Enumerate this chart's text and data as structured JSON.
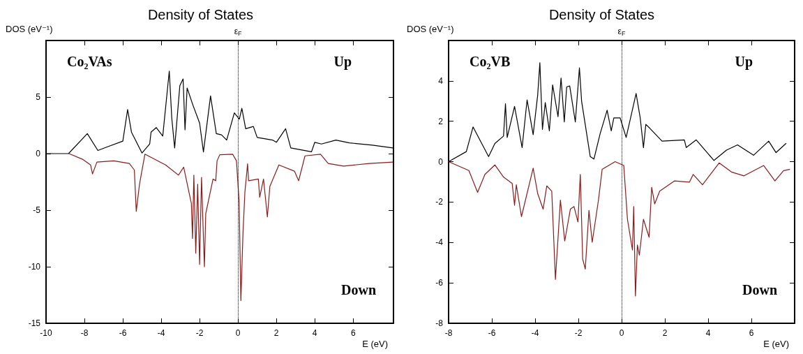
{
  "chart_data": [
    {
      "type": "line",
      "title": "Density of States",
      "xlabel": "E (eV)",
      "ylabel": "DOS (eV⁻¹)",
      "annotations": [
        "Co₂VAs",
        "Up",
        "Down"
      ],
      "xlim": [
        -10,
        8.1
      ],
      "xticks": [
        -10,
        -8,
        -6,
        -4,
        -2,
        0,
        2,
        4,
        6
      ],
      "ylim": [
        -15,
        10
      ],
      "yticks": [
        -15,
        -10,
        -5,
        0,
        5
      ],
      "grid": false,
      "marker": "none",
      "line_style": "solid",
      "ref_lines": [
        {
          "axis": "x",
          "value": 0,
          "label": "ε$_{F}$",
          "color": "#000000",
          "line_style": "dotted"
        }
      ],
      "series": [
        {
          "color": "#000000",
          "x": [
            -10,
            -8.83,
            -7.85,
            -7.3,
            -6.8,
            -6.0,
            -5.75,
            -5.55,
            -5.0,
            -4.6,
            -4.53,
            -4.26,
            -3.92,
            -3.58,
            -3.45,
            -3.3,
            -3.03,
            -2.86,
            -2.76,
            -2.65,
            -2.35,
            -2.0,
            -1.8,
            -1.43,
            -1.13,
            -0.86,
            -0.59,
            -0.19,
            0.07,
            0.2,
            0.4,
            0.8,
            1.0,
            1.8,
            2.0,
            2.48,
            2.75,
            3.83,
            4.0,
            4.35,
            5.1,
            5.8,
            7.0,
            8.07
          ],
          "values": [
            0,
            0,
            1.77,
            0.28,
            0.6,
            1.1,
            3.9,
            1.9,
            0.05,
            0.85,
            1.9,
            2.3,
            1.55,
            7.3,
            3.15,
            0.5,
            6.0,
            6.6,
            2.1,
            5.8,
            4.3,
            2.7,
            0.15,
            5.1,
            1.77,
            1.66,
            1.2,
            3.6,
            3.05,
            4.0,
            2.2,
            2.4,
            1.43,
            1.2,
            1.0,
            2.2,
            0.5,
            0.16,
            1.0,
            0.85,
            1.2,
            0.95,
            0.75,
            0.5
          ]
        },
        {
          "color": "#8b1a1a",
          "x": [
            -8.8,
            -8.1,
            -7.68,
            -7.58,
            -7.35,
            -6.47,
            -5.66,
            -5.4,
            -5.3,
            -5.13,
            -4.85,
            -3.77,
            -3.1,
            -2.83,
            -2.43,
            -2.37,
            -2.3,
            -2.2,
            -2.1,
            -2.0,
            -1.9,
            -1.8,
            -1.75,
            -1.68,
            -1.5,
            -1.3,
            -1.16,
            -1.09,
            -0.95,
            -0.28,
            -0.08,
            0.06,
            0.15,
            0.26,
            0.36,
            0.5,
            0.55,
            1.06,
            1.13,
            1.33,
            1.53,
            1.66,
            2.13,
            2.94,
            3.16,
            3.49,
            4.3,
            4.7,
            5.5,
            6.85,
            8.07
          ],
          "values": [
            0,
            -0.5,
            -1.0,
            -1.8,
            -0.75,
            -0.64,
            -0.87,
            -1.45,
            -5.1,
            -2.7,
            -0.05,
            -1.0,
            -1.9,
            -1.2,
            -4.4,
            -7.5,
            -1.9,
            -8.8,
            -2.7,
            -9.8,
            -2.1,
            -7.5,
            -10.0,
            -5.3,
            -3.85,
            -2.25,
            -2.4,
            -0.64,
            -0.1,
            -0.05,
            -0.64,
            -4.3,
            -13.0,
            -7.0,
            -3.4,
            -0.9,
            -2.4,
            -2.25,
            -3.85,
            -2.25,
            -5.6,
            -2.9,
            -1.0,
            -1.55,
            -2.4,
            -0.2,
            -0.05,
            -0.87,
            -1.1,
            -0.87,
            -0.75
          ]
        }
      ]
    },
    {
      "type": "line",
      "title": "Density of States",
      "xlabel": "E (eV)",
      "ylabel": "DOS (eV⁻¹)",
      "annotations": [
        "Co₂VB",
        "Up",
        "Down"
      ],
      "xlim": [
        -8,
        8
      ],
      "xticks": [
        -8,
        -6,
        -4,
        -2,
        0,
        2,
        4,
        6
      ],
      "ylim": [
        -8,
        6
      ],
      "yticks": [
        -8,
        -6,
        -4,
        -2,
        0,
        2,
        4
      ],
      "grid": false,
      "marker": "none",
      "line_style": "solid",
      "ref_lines": [
        {
          "axis": "x",
          "value": 0,
          "label": "ε$_{F}$",
          "color": "#000000",
          "line_style": "dotted"
        }
      ],
      "series": [
        {
          "color": "#000000",
          "x": [
            -8,
            -7.18,
            -6.87,
            -6.15,
            -5.86,
            -5.46,
            -5.37,
            -5.29,
            -4.95,
            -4.6,
            -4.37,
            -4.09,
            -3.88,
            -3.78,
            -3.66,
            -3.53,
            -3.34,
            -3.19,
            -2.94,
            -2.8,
            -2.65,
            -2.54,
            -2.4,
            -2.14,
            -1.95,
            -1.85,
            -1.45,
            -1.28,
            -0.99,
            -0.67,
            -0.48,
            -0.36,
            -0.07,
            0.21,
            0.67,
            0.86,
            1.01,
            1.12,
            1.3,
            1.87,
            2.9,
            2.99,
            3.45,
            4.27,
            4.85,
            5.36,
            6.1,
            6.8,
            7.14,
            7.6
          ],
          "values": [
            0,
            0.5,
            1.72,
            0.25,
            0.9,
            1.27,
            2.87,
            1.2,
            2.74,
            0.7,
            3.06,
            1.34,
            3.3,
            4.9,
            1.6,
            2.93,
            1.53,
            3.8,
            2.23,
            4.14,
            1.97,
            3.7,
            3.75,
            1.97,
            4.65,
            3.0,
            0.25,
            0.13,
            1.4,
            2.55,
            1.53,
            2.17,
            2.17,
            1.2,
            3.38,
            2.17,
            0.7,
            1.85,
            1.66,
            1.02,
            1.08,
            0.7,
            1.08,
            0.06,
            0.57,
            0.83,
            0.32,
            1.02,
            0.45,
            0.9
          ]
        },
        {
          "color": "#8b1a1a",
          "x": [
            -8,
            -7.06,
            -6.66,
            -6.32,
            -5.86,
            -5.46,
            -5.06,
            -4.95,
            -4.87,
            -4.63,
            -4.09,
            -3.88,
            -3.63,
            -3.46,
            -3.23,
            -3.06,
            -2.83,
            -2.63,
            -2.37,
            -2.2,
            -2.02,
            -1.91,
            -1.8,
            -1.68,
            -1.51,
            -1.36,
            -1.07,
            -0.9,
            -0.3,
            0.1,
            0.27,
            0.5,
            0.56,
            0.64,
            0.73,
            0.82,
            1.01,
            1.27,
            1.39,
            1.53,
            1.76,
            2.45,
            3.14,
            3.31,
            3.74,
            4.51,
            5.08,
            5.66,
            6.57,
            7.09,
            7.49,
            7.77
          ],
          "values": [
            0,
            -0.44,
            -1.52,
            -0.63,
            -0.16,
            -0.76,
            -1.08,
            -2.16,
            -1.14,
            -2.72,
            -0.32,
            -1.58,
            -2.35,
            -1.2,
            -1.46,
            -5.83,
            -1.9,
            -3.93,
            -2.35,
            -2.22,
            -2.98,
            -0.63,
            -4.82,
            -5.32,
            -2.41,
            -3.99,
            -1.9,
            -0.38,
            0,
            -0.19,
            -2.85,
            -4.37,
            -2.22,
            -6.65,
            -4.12,
            -4.63,
            -2.85,
            -3.74,
            -1.27,
            -2.09,
            -1.46,
            -0.95,
            -1.01,
            -0.63,
            -1.14,
            -0.06,
            -0.51,
            -0.7,
            -0.19,
            -0.95,
            -0.44,
            -0.38
          ]
        }
      ]
    }
  ]
}
